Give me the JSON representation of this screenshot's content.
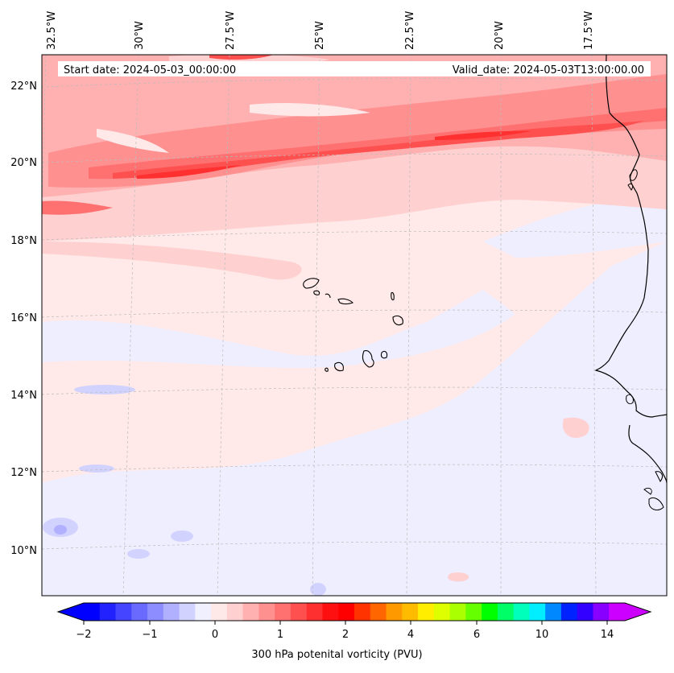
{
  "map": {
    "lon_labels": [
      "32.5°W",
      "30°W",
      "27.5°W",
      "25°W",
      "22.5°W",
      "20°W",
      "17.5°W"
    ],
    "lat_labels": [
      "22°N",
      "20°N",
      "18°N",
      "16°N",
      "14°N",
      "12°N",
      "10°N"
    ],
    "start_date": "Start date: 2024-05-03_00:00:00",
    "valid_date": "Valid_date: 2024-05-03T13:00:00.00",
    "field": "300 hPa potenital vorticity (PVU)",
    "colors": {
      "background_pv": "#ffe9e9",
      "weak_negative": "#eeeeff",
      "coastline": "#000000"
    }
  },
  "colorbar": {
    "tick_labels": [
      "−2",
      "−1",
      "0",
      "1",
      "2",
      "4",
      "6",
      "10",
      "14"
    ],
    "label": "300 hPa potenital vorticity (PVU)",
    "colors": [
      "#0000ff",
      "#2222ff",
      "#4545ff",
      "#6a6aff",
      "#8d8dff",
      "#b0b0ff",
      "#d2d2ff",
      "#f0f0ff",
      "#ffe8e8",
      "#ffd0d0",
      "#ffb0b0",
      "#ff9090",
      "#ff7070",
      "#ff5050",
      "#ff3030",
      "#ff1010",
      "#ff0000",
      "#ff3300",
      "#ff6600",
      "#ff9900",
      "#ffbb00",
      "#ffee00",
      "#ddff00",
      "#aaff00",
      "#66ff00",
      "#00ff00",
      "#00ff66",
      "#00ffbb",
      "#00eeff",
      "#0088ff",
      "#0022ff",
      "#3300ff",
      "#8800ff",
      "#cc00ff"
    ]
  }
}
